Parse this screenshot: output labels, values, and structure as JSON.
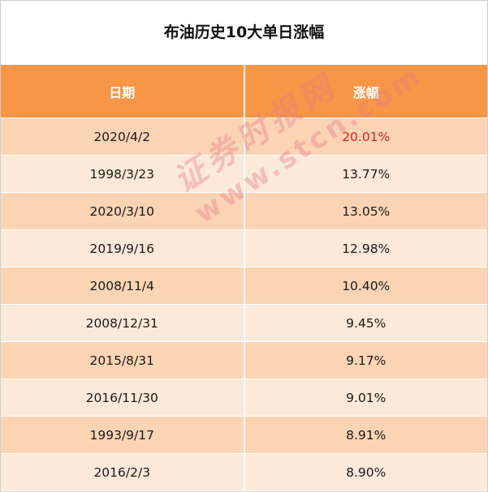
{
  "table": {
    "title": "布油历史10大单日涨幅",
    "headers": [
      "日期",
      "涨幅"
    ],
    "rows": [
      {
        "date": "2020/4/2",
        "change": "20.01%"
      },
      {
        "date": "1998/3/23",
        "change": "13.77%"
      },
      {
        "date": "2020/3/10",
        "change": "13.05%"
      },
      {
        "date": "2019/9/16",
        "change": "12.98%"
      },
      {
        "date": "2008/11/4",
        "change": "10.40%"
      },
      {
        "date": "2008/12/31",
        "change": "9.45%"
      },
      {
        "date": "2015/8/31",
        "change": "9.17%"
      },
      {
        "date": "2016/11/30",
        "change": "9.01%"
      },
      {
        "date": "1993/9/17",
        "change": "8.91%"
      },
      {
        "date": "2016/2/3",
        "change": "8.90%"
      }
    ],
    "highlight_color": "#e02020",
    "header_color": "#f79646",
    "row_colors": [
      "#fbd4b4",
      "#fde9d9"
    ]
  },
  "watermark": {
    "cn": "证券时报网",
    "url": "www.stcn.com"
  }
}
